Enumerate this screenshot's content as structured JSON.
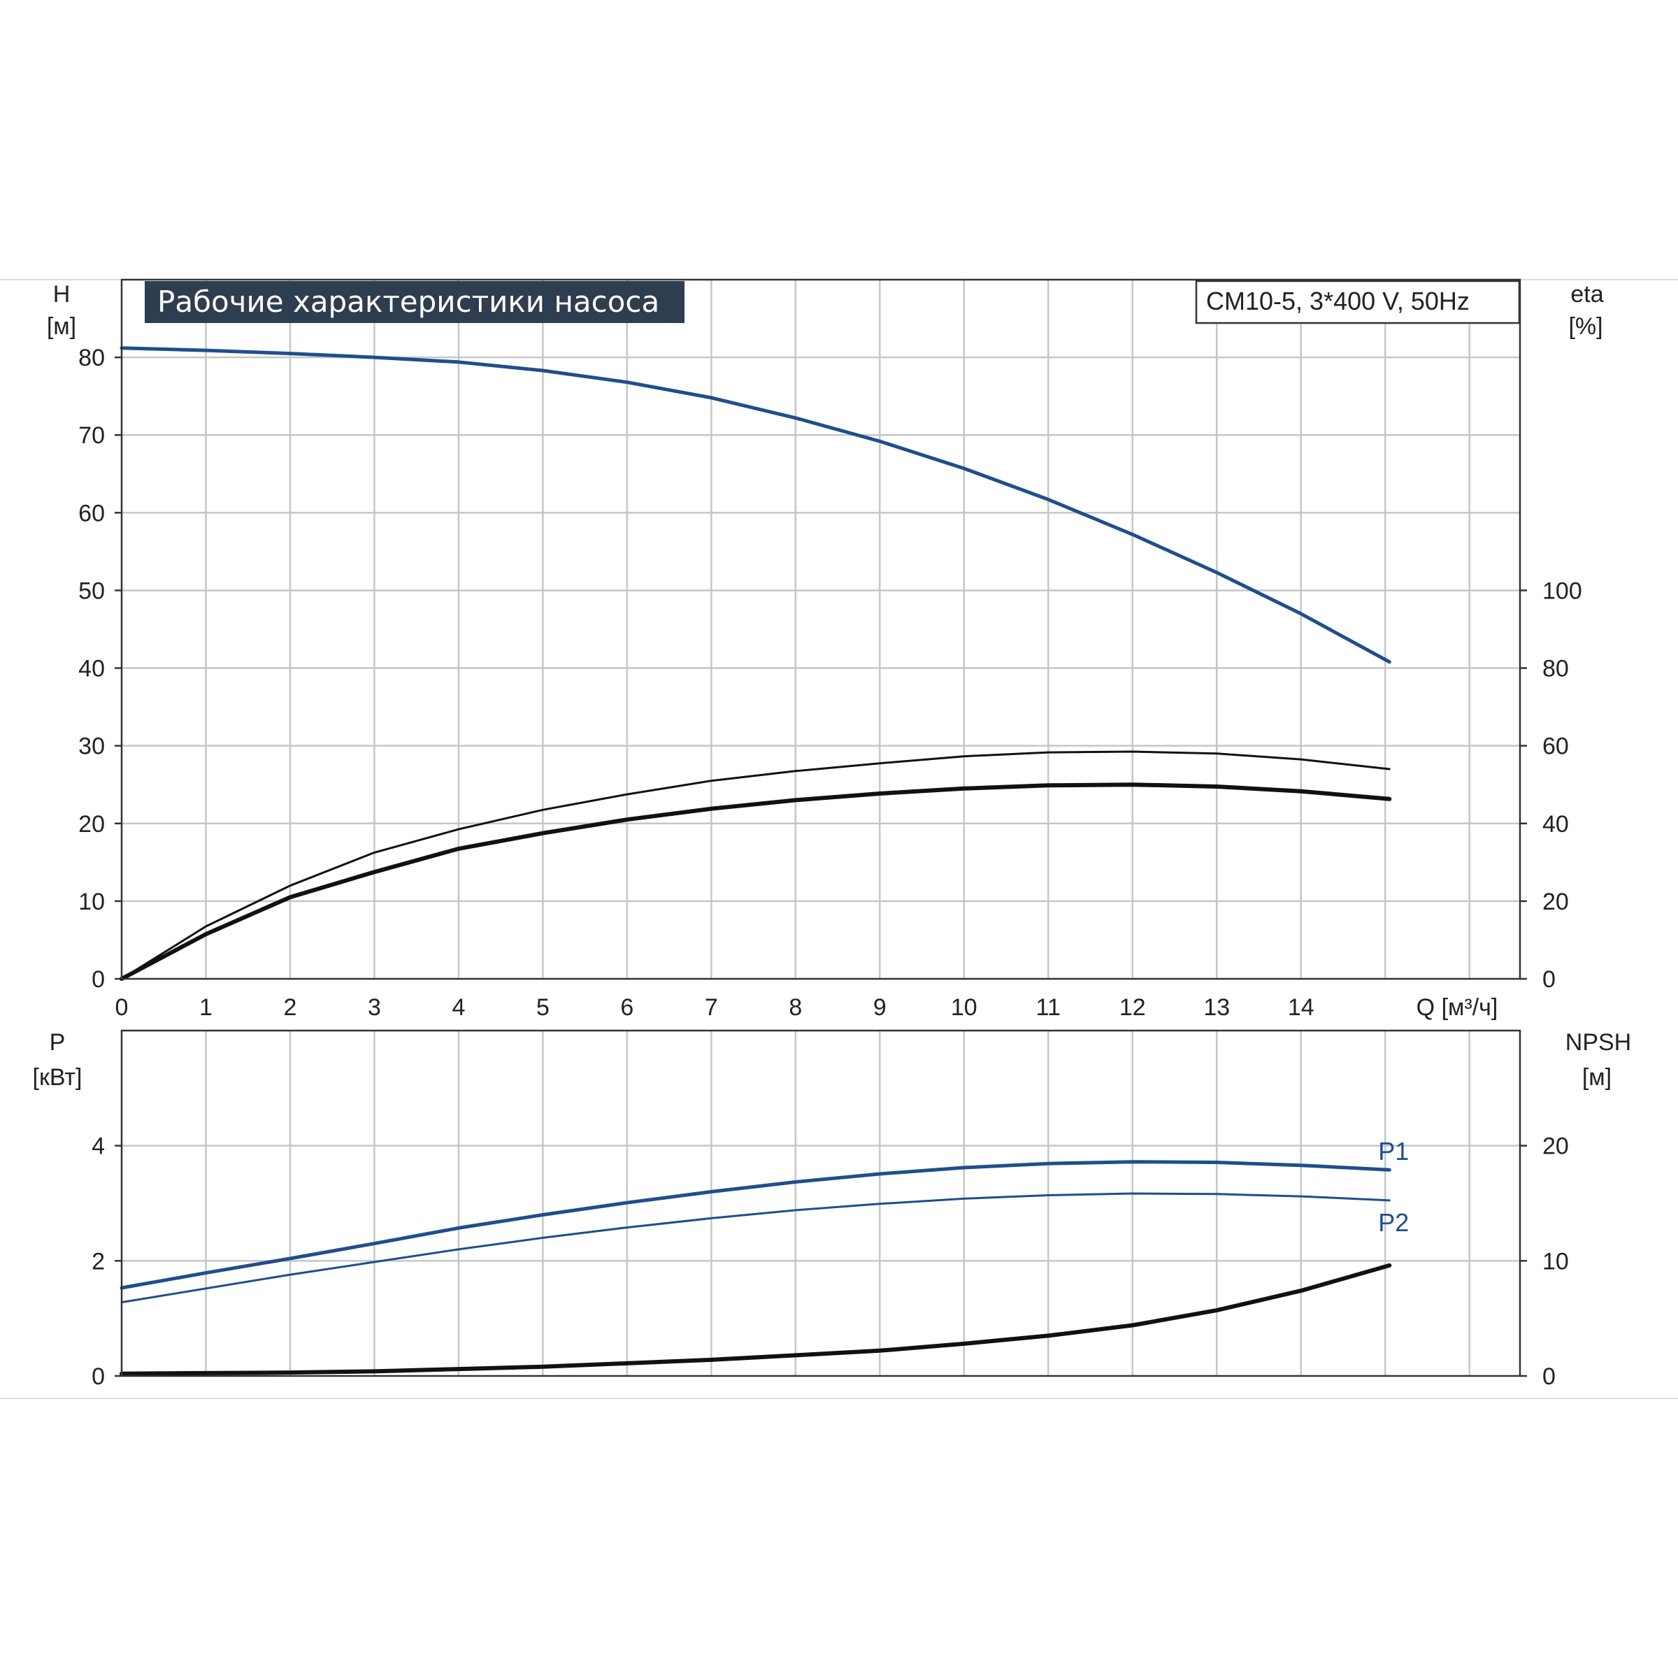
{
  "chart_data": [
    {
      "type": "line",
      "title": "Рабочие характеристики насоса",
      "model_label": "CM10-5, 3*400 V, 50Hz",
      "xlabel": "Q [м³/ч]",
      "x_ticks": [
        0,
        1,
        2,
        3,
        4,
        5,
        6,
        7,
        8,
        9,
        10,
        11,
        12,
        13,
        14
      ],
      "xlim": [
        0,
        16.6
      ],
      "y_left": {
        "label_line1": "H",
        "label_line2": "[м]",
        "ticks": [
          0,
          10,
          20,
          30,
          40,
          50,
          60,
          70,
          80
        ],
        "lim": [
          0,
          90
        ]
      },
      "y_right": {
        "label_line1": "eta",
        "label_line2": "[%]",
        "ticks": [
          0,
          20,
          40,
          60,
          80,
          100
        ],
        "lim": [
          0,
          180
        ]
      },
      "grid": true,
      "series": [
        {
          "name": "",
          "axis": "left",
          "color": "#1f4e8c",
          "width": 5,
          "x": [
            0,
            1,
            2,
            3,
            4,
            5,
            6,
            7,
            8,
            9,
            10,
            11,
            12,
            13,
            14,
            15.05
          ],
          "y": [
            81.2,
            80.9,
            80.5,
            80.0,
            79.4,
            78.3,
            76.8,
            74.8,
            72.2,
            69.2,
            65.7,
            61.7,
            57.2,
            52.3,
            47.0,
            40.8
          ]
        },
        {
          "name": "",
          "axis": "right",
          "color": "#111111",
          "width": 3,
          "x": [
            0,
            1,
            2,
            3,
            4,
            5,
            6,
            7,
            8,
            9,
            10,
            11,
            12,
            13,
            14,
            15.05
          ],
          "y": [
            0,
            13.5,
            24,
            32.5,
            38.5,
            43.5,
            47.5,
            51,
            53.5,
            55.5,
            57.3,
            58.3,
            58.5,
            58,
            56.5,
            54
          ]
        },
        {
          "name": "",
          "axis": "right",
          "color": "#111111",
          "width": 6,
          "x": [
            0,
            1,
            2,
            3,
            4,
            5,
            6,
            7,
            8,
            9,
            10,
            11,
            12,
            13,
            14,
            15.05
          ],
          "y": [
            0,
            11.5,
            21,
            27.5,
            33.5,
            37.5,
            41,
            43.8,
            46,
            47.7,
            49,
            49.8,
            50,
            49.5,
            48.3,
            46.3
          ]
        }
      ]
    },
    {
      "type": "line",
      "xlabel": "",
      "x_ticks": [
        0,
        1,
        2,
        3,
        4,
        5,
        6,
        7,
        8,
        9,
        10,
        11,
        12,
        13,
        14
      ],
      "xlim": [
        0,
        16.6
      ],
      "y_left": {
        "label_line1": "P",
        "label_line2": "[кВт]",
        "ticks": [
          0,
          2,
          4
        ],
        "lim": [
          0,
          6
        ]
      },
      "y_right": {
        "label_line1": "NPSH",
        "label_line2": "[м]",
        "ticks": [
          0,
          10,
          20
        ],
        "lim": [
          0,
          30
        ]
      },
      "grid": true,
      "series": [
        {
          "name": "P1",
          "axis": "left",
          "color": "#1f4e8c",
          "width": 5,
          "x": [
            0,
            1,
            2,
            3,
            4,
            5,
            6,
            7,
            8,
            9,
            10,
            11,
            12,
            13,
            14,
            15.05
          ],
          "y": [
            1.53,
            1.79,
            2.04,
            2.3,
            2.57,
            2.8,
            3.01,
            3.2,
            3.37,
            3.51,
            3.62,
            3.69,
            3.72,
            3.71,
            3.66,
            3.58
          ]
        },
        {
          "name": "P2",
          "axis": "left",
          "color": "#1f4e8c",
          "width": 3,
          "x": [
            0,
            1,
            2,
            3,
            4,
            5,
            6,
            7,
            8,
            9,
            10,
            11,
            12,
            13,
            14,
            15.05
          ],
          "y": [
            1.28,
            1.52,
            1.76,
            1.98,
            2.2,
            2.4,
            2.58,
            2.74,
            2.88,
            2.99,
            3.08,
            3.14,
            3.17,
            3.16,
            3.12,
            3.05
          ]
        },
        {
          "name": "",
          "axis": "right",
          "color": "#111111",
          "width": 6,
          "x": [
            0,
            2,
            3,
            4,
            5,
            6,
            7,
            8,
            9,
            10,
            11,
            12,
            13,
            14,
            15.05
          ],
          "y": [
            0.2,
            0.3,
            0.4,
            0.6,
            0.8,
            1.1,
            1.4,
            1.8,
            2.2,
            2.8,
            3.5,
            4.4,
            5.7,
            7.4,
            9.6
          ]
        }
      ]
    }
  ]
}
